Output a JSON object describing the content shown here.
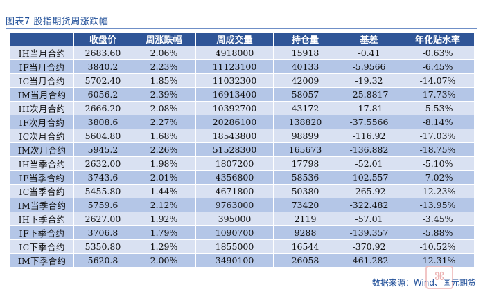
{
  "caption": "图表7 股指期货周涨跌幅",
  "headers": [
    "",
    "收盘价",
    "周涨跌幅",
    "周成交量",
    "持仓量",
    "基差",
    "年化贴水率"
  ],
  "rows": [
    [
      "IH当月合约",
      "2683.60",
      "2.06%",
      "4918000",
      "15918",
      "-0.41",
      "-0.63%"
    ],
    [
      "IF当月合约",
      "3840.2",
      "2.23%",
      "11123100",
      "40133",
      "-5.9566",
      "-6.45%"
    ],
    [
      "IC当月合约",
      "5702.40",
      "1.85%",
      "11032300",
      "42009",
      "-19.32",
      "-14.07%"
    ],
    [
      "IM当月合约",
      "6056.2",
      "2.39%",
      "16913400",
      "58057",
      "-25.8817",
      "-17.73%"
    ],
    [
      "IH次月合约",
      "2666.20",
      "2.08%",
      "10392700",
      "43172",
      "-17.81",
      "-5.53%"
    ],
    [
      "IF次月合约",
      "3808.6",
      "2.27%",
      "20286100",
      "138820",
      "-37.5566",
      "-8.14%"
    ],
    [
      "IC次月合约",
      "5604.80",
      "1.68%",
      "18543800",
      "98899",
      "-116.92",
      "-17.03%"
    ],
    [
      "IM次月合约",
      "5945.2",
      "2.26%",
      "51528300",
      "165673",
      "-136.882",
      "-18.75%"
    ],
    [
      "IH当季合约",
      "2632.00",
      "1.98%",
      "1807200",
      "17798",
      "-52.01",
      "-5.10%"
    ],
    [
      "IF当季合约",
      "3743.6",
      "2.01%",
      "4356800",
      "58536",
      "-102.557",
      "-7.02%"
    ],
    [
      "IC当季合约",
      "5455.80",
      "1.44%",
      "4671800",
      "50380",
      "-265.92",
      "-12.23%"
    ],
    [
      "IM当季合约",
      "5759.6",
      "2.12%",
      "9763000",
      "73420",
      "-322.482",
      "-13.95%"
    ],
    [
      "IH下季合约",
      "2627.00",
      "1.92%",
      "395000",
      "2119",
      "-57.01",
      "-3.45%"
    ],
    [
      "IF下季合约",
      "3706.8",
      "1.79%",
      "1090700",
      "9288",
      "-139.357",
      "-5.88%"
    ],
    [
      "IC下季合约",
      "5350.80",
      "1.29%",
      "1855000",
      "16544",
      "-370.92",
      "-10.52%"
    ],
    [
      "IM下季合约",
      "5620.8",
      "2.00%",
      "3490100",
      "26058",
      "-461.282",
      "-12.31%"
    ]
  ],
  "source": "数据来源：Wind、国元期货",
  "watermark_text": "洋帆"
}
